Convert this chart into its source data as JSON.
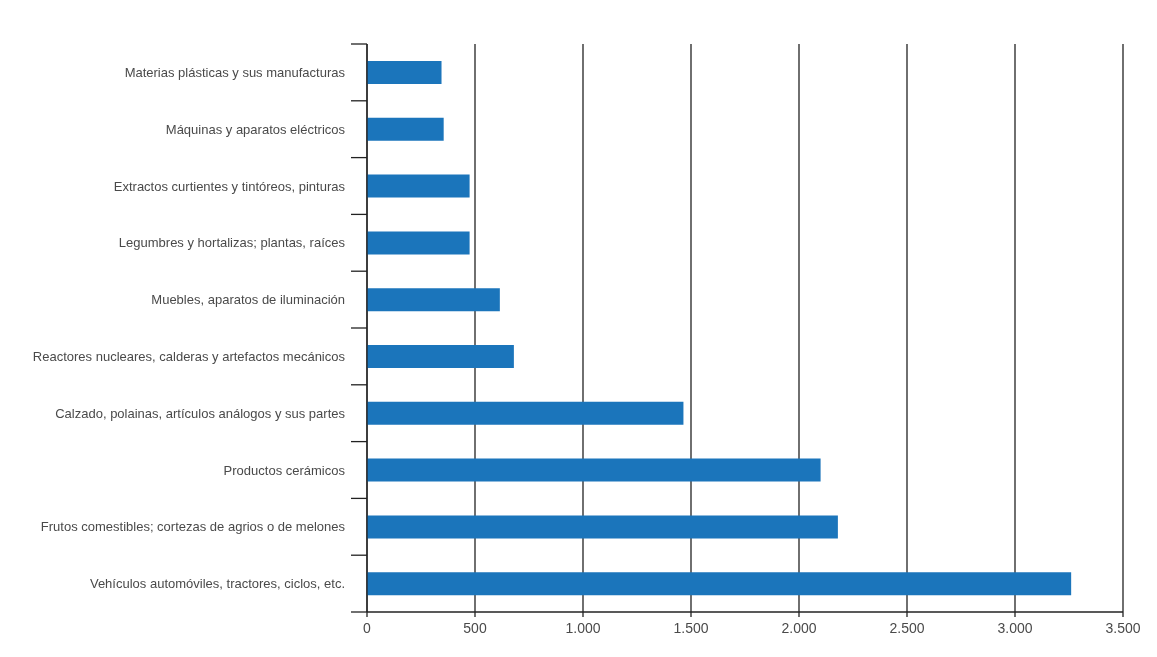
{
  "chart_data": {
    "type": "bar",
    "orientation": "horizontal",
    "categories": [
      "Materias plásticas y sus manufacturas",
      "Máquinas y aparatos eléctricos",
      "Extractos curtientes y tintóreos, pinturas",
      "Legumbres y hortalizas; plantas, raíces",
      "Muebles, aparatos de iluminación",
      "Reactores nucleares, calderas y artefactos mecánicos",
      "Calzado, polainas, artículos análogos y sus partes",
      "Productos cerámicos",
      "Frutos comestibles; cortezas de agrios o de melones",
      "Vehículos automóviles, tractores, ciclos, etc."
    ],
    "values": [
      345,
      355,
      475,
      475,
      615,
      680,
      1465,
      2100,
      2180,
      3260
    ],
    "color": "#1b75bb",
    "xlim": [
      0,
      3500
    ],
    "xticks": [
      0,
      500,
      {
        "value": 1000,
        "label": "1.000"
      },
      {
        "value": 1500,
        "label": "1.500"
      },
      {
        "value": 2000,
        "label": "2.000"
      },
      {
        "value": 2500,
        "label": "2.500"
      },
      {
        "value": 3000,
        "label": "3.000"
      },
      {
        "value": 3500,
        "label": "3.500"
      }
    ],
    "grid": "x"
  }
}
